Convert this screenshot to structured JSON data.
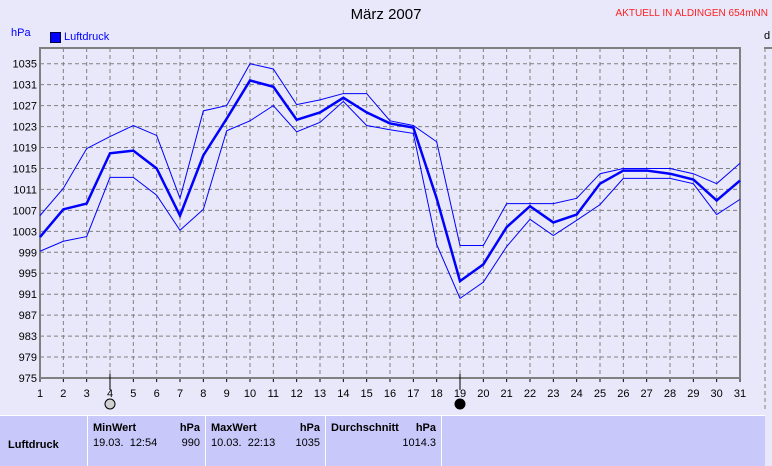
{
  "header": {
    "title": "März 2007",
    "station": "AKTUELL IN ALDINGEN 654mNN",
    "unit": "hPa",
    "right_axis_label": "d"
  },
  "chart_data": {
    "type": "line",
    "title": "März 2007",
    "ylabel": "hPa",
    "x": [
      1,
      2,
      3,
      4,
      5,
      6,
      7,
      8,
      9,
      10,
      11,
      12,
      13,
      14,
      15,
      16,
      17,
      18,
      19,
      20,
      21,
      22,
      23,
      24,
      25,
      26,
      27,
      28,
      29,
      30,
      31
    ],
    "xlim": [
      1,
      31
    ],
    "ylim": [
      975,
      1038
    ],
    "yticks": [
      975,
      979,
      983,
      987,
      991,
      995,
      999,
      1003,
      1007,
      1011,
      1015,
      1019,
      1023,
      1027,
      1031,
      1035
    ],
    "grid": true,
    "legend": {
      "position": "top-left",
      "entries": [
        "Luftdruck"
      ]
    },
    "colors": {
      "series": "#0000ff",
      "grid": "#808080"
    },
    "series": [
      {
        "name": "Luftdruck",
        "values": [
          1001.9,
          1007.2,
          1008.3,
          1017.9,
          1018.4,
          1015,
          1006,
          1017.5,
          1024.5,
          1031.8,
          1030.6,
          1024.3,
          1025.7,
          1028.5,
          1025.7,
          1023.6,
          1022.8,
          1009.3,
          993.5,
          996.7,
          1003.8,
          1007.8,
          1004.7,
          1006.2,
          1012.1,
          1014.6,
          1014.6,
          1014,
          1012.9,
          1008.9,
          1012.7
        ]
      },
      {
        "values": [
          1006,
          1011.2,
          1018.8,
          1021.1,
          1023.2,
          1021.3,
          1009.3,
          1026,
          1027,
          1035,
          1034,
          1027.2,
          1028.1,
          1029.3,
          1029.3,
          1024.1,
          1023.2,
          1020.1,
          1000.3,
          1000.3,
          1008.3,
          1008.3,
          1008.3,
          1009.3,
          1014,
          1015,
          1015,
          1015,
          1014,
          1012.1,
          1016
        ]
      },
      {
        "values": [
          999.2,
          1001.1,
          1002,
          1013.3,
          1013.3,
          1009.9,
          1003.2,
          1007.2,
          1022.2,
          1024.1,
          1027,
          1022,
          1023.8,
          1027.8,
          1023.2,
          1022.4,
          1021.7,
          1000.5,
          990.2,
          993.3,
          1000.1,
          1005.3,
          1002.2,
          1005.1,
          1008.1,
          1013.1,
          1013.1,
          1013.1,
          1012.1,
          1006.2,
          1009.1
        ]
      }
    ],
    "moon_phases": [
      {
        "day": 4,
        "phase": "full-moon"
      },
      {
        "day": 19,
        "phase": "new-moon"
      }
    ]
  },
  "table": {
    "row_label": "Luftdruck",
    "min": {
      "label": "MinWert",
      "unit": "hPa",
      "date": "19.03.  12:54",
      "value": "990"
    },
    "max": {
      "label": "MaxWert",
      "unit": "hPa",
      "date": "10.03.  22:13",
      "value": "1035"
    },
    "avg": {
      "label": "Durchschnitt",
      "unit": "hPa",
      "value": "1014.3"
    }
  }
}
